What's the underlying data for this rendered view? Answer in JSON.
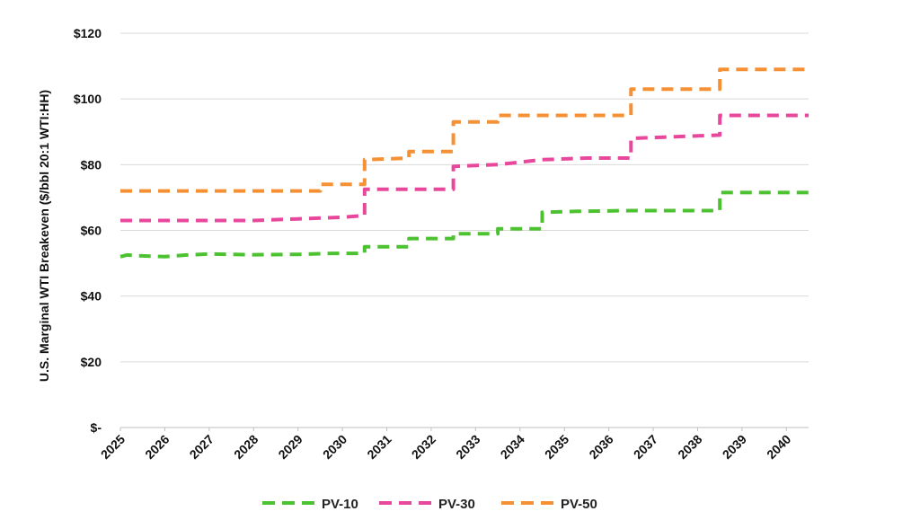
{
  "chart_data": {
    "type": "line",
    "title": "",
    "xlabel": "",
    "ylabel": "U.S. Marginal WTI Breakeven ($/bbl 20:1 WTI:HH)",
    "x_ticks": [
      "2025",
      "2026",
      "2027",
      "2028",
      "2029",
      "2030",
      "2031",
      "2032",
      "2033",
      "2034",
      "2035",
      "2036",
      "2037",
      "2038",
      "2039",
      "2040"
    ],
    "y_ticks": [
      {
        "value": 0,
        "label": "$-"
      },
      {
        "value": 20,
        "label": "$20"
      },
      {
        "value": 40,
        "label": "$40"
      },
      {
        "value": 60,
        "label": "$60"
      },
      {
        "value": 80,
        "label": "$80"
      },
      {
        "value": 100,
        "label": "$100"
      },
      {
        "value": 120,
        "label": "$120"
      }
    ],
    "xlim": [
      2025,
      2040.5
    ],
    "ylim": [
      0,
      120
    ],
    "grid": "horizontal",
    "line_style": "dashed",
    "legend_position": "bottom",
    "series": [
      {
        "name": "PV-10",
        "color": "#4dc230",
        "points": [
          [
            2025,
            52
          ],
          [
            2025.15,
            52.5
          ],
          [
            2025.4,
            52.3
          ],
          [
            2026,
            52
          ],
          [
            2026.5,
            52.5
          ],
          [
            2027,
            52.8
          ],
          [
            2028,
            52.6
          ],
          [
            2029,
            52.7
          ],
          [
            2029.8,
            53
          ],
          [
            2030.5,
            53
          ],
          [
            2030.5,
            55
          ],
          [
            2031.5,
            55
          ],
          [
            2031.5,
            57.5
          ],
          [
            2032.5,
            57.5
          ],
          [
            2032.5,
            59
          ],
          [
            2033.5,
            59
          ],
          [
            2033.5,
            60.5
          ],
          [
            2034.5,
            60.5
          ],
          [
            2034.5,
            65.5
          ],
          [
            2035.3,
            65.8
          ],
          [
            2036.5,
            66
          ],
          [
            2037.5,
            66
          ],
          [
            2038.5,
            66
          ],
          [
            2038.5,
            71.5
          ],
          [
            2039.5,
            71.5
          ],
          [
            2040.5,
            71.5
          ]
        ]
      },
      {
        "name": "PV-30",
        "color": "#e8489c",
        "points": [
          [
            2025,
            63
          ],
          [
            2026,
            63
          ],
          [
            2027,
            63
          ],
          [
            2028,
            63
          ],
          [
            2029,
            63.5
          ],
          [
            2030,
            64
          ],
          [
            2030.5,
            64.5
          ],
          [
            2030.5,
            72.5
          ],
          [
            2031.5,
            72.5
          ],
          [
            2032.5,
            72.5
          ],
          [
            2032.5,
            79.5
          ],
          [
            2033.5,
            80
          ],
          [
            2034.5,
            81.5
          ],
          [
            2035.5,
            82
          ],
          [
            2036.5,
            82
          ],
          [
            2036.5,
            88
          ],
          [
            2037.5,
            88.5
          ],
          [
            2038.5,
            89
          ],
          [
            2038.5,
            95
          ],
          [
            2039.5,
            95
          ],
          [
            2040.5,
            95
          ]
        ]
      },
      {
        "name": "PV-50",
        "color": "#f59035",
        "points": [
          [
            2025,
            72
          ],
          [
            2026,
            72
          ],
          [
            2027,
            72
          ],
          [
            2028,
            72
          ],
          [
            2029,
            72
          ],
          [
            2029.5,
            72
          ],
          [
            2029.5,
            74
          ],
          [
            2030.5,
            74
          ],
          [
            2030.5,
            81.5
          ],
          [
            2031.5,
            82
          ],
          [
            2031.5,
            84
          ],
          [
            2032.5,
            84
          ],
          [
            2032.5,
            93
          ],
          [
            2033.5,
            93
          ],
          [
            2033.5,
            95
          ],
          [
            2034.5,
            95
          ],
          [
            2035.5,
            95
          ],
          [
            2036.5,
            95
          ],
          [
            2036.5,
            103
          ],
          [
            2037.5,
            103
          ],
          [
            2038.5,
            103
          ],
          [
            2038.5,
            109
          ],
          [
            2039.5,
            109
          ],
          [
            2040.5,
            109
          ]
        ]
      }
    ]
  }
}
